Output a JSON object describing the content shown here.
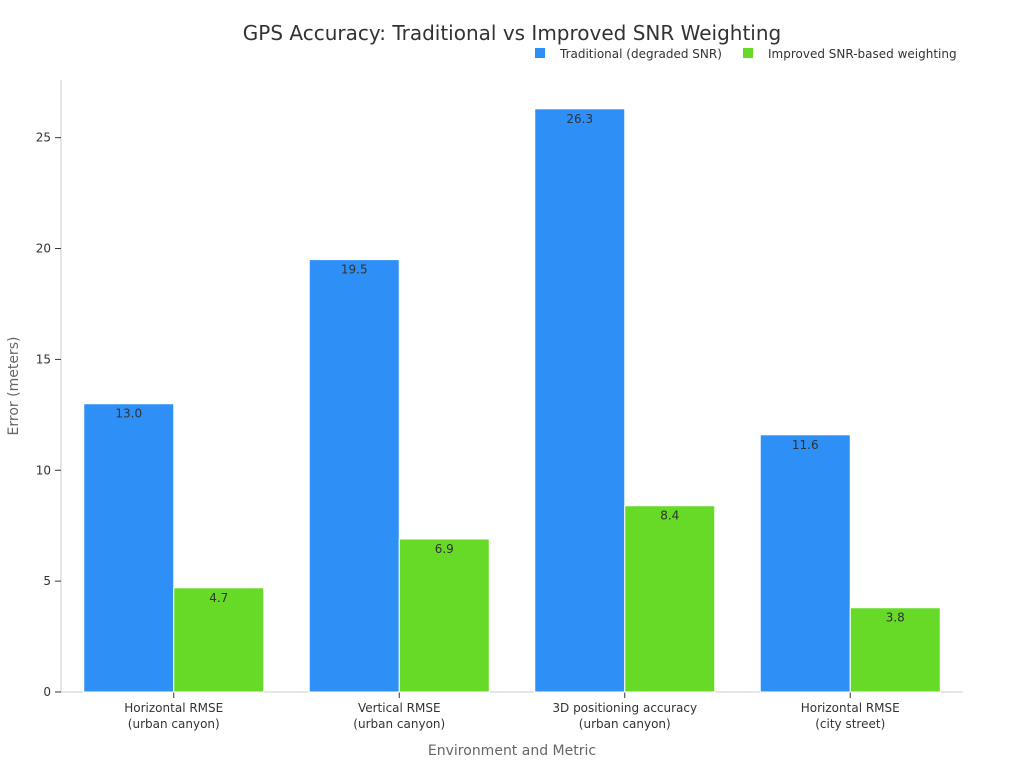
{
  "chart_data": {
    "type": "bar",
    "title": "GPS Accuracy: Traditional vs Improved SNR Weighting",
    "xlabel": "Environment and Metric",
    "ylabel": "Error (meters)",
    "ylim": [
      0,
      27.6
    ],
    "yticks": [
      0,
      5,
      10,
      15,
      20,
      25
    ],
    "grid": false,
    "legend_position": "top-right",
    "categories": [
      [
        "Horizontal RMSE",
        "(urban canyon)"
      ],
      [
        "Vertical RMSE",
        "(urban canyon)"
      ],
      [
        "3D positioning accuracy",
        "(urban canyon)"
      ],
      [
        "Horizontal RMSE",
        "(city street)"
      ]
    ],
    "series": [
      {
        "name": "Traditional (degraded SNR)",
        "color": "#2e90f7",
        "values": [
          13.0,
          19.5,
          26.3,
          11.6
        ]
      },
      {
        "name": "Improved SNR-based weighting",
        "color": "#66da26",
        "values": [
          4.7,
          6.9,
          8.4,
          3.8
        ]
      }
    ]
  }
}
